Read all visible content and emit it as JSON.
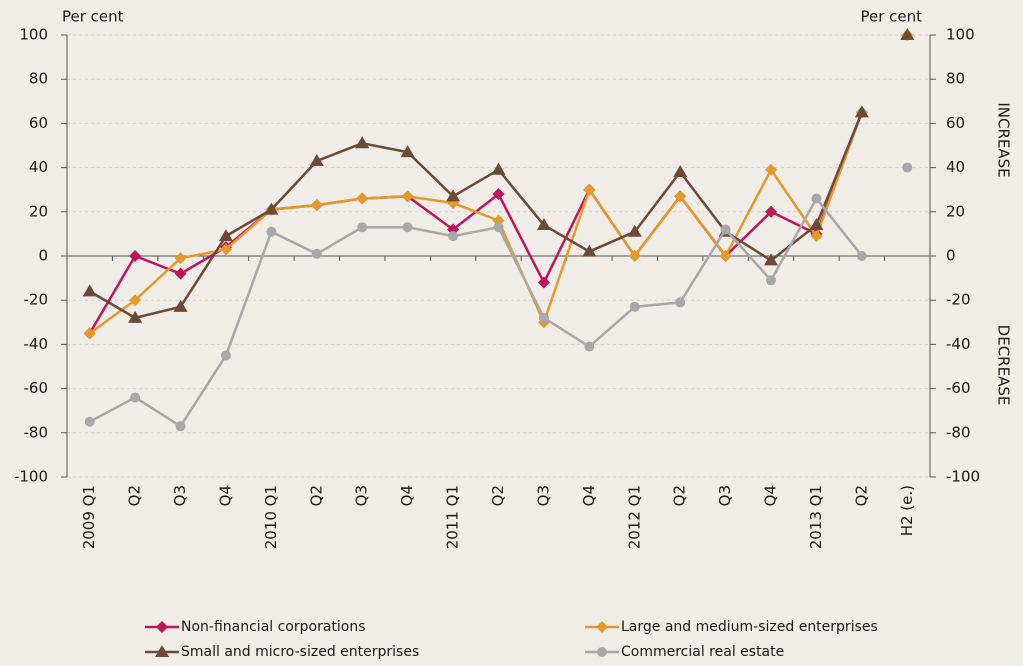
{
  "chart_data": {
    "type": "line",
    "y_label": "Per cent",
    "y2_label": "Per cent",
    "annotations": [
      "INCREASE",
      "DECREASE"
    ],
    "categories": [
      "2009 Q1",
      "Q2",
      "Q3",
      "Q4",
      "2010 Q1",
      "Q2",
      "Q3",
      "Q4",
      "2011 Q1",
      "Q2",
      "Q3",
      "Q4",
      "2012 Q1",
      "Q2",
      "Q3",
      "Q4",
      "2013 Q1",
      "Q2",
      "H2 (e.)"
    ],
    "unconnected_last_point": true,
    "series": [
      {
        "name": "Non-financial corporations",
        "color": "#c0145c",
        "marker": "diamond",
        "values": [
          -35,
          0,
          -8,
          4,
          21,
          23,
          26,
          27,
          12,
          28,
          -12,
          30,
          0,
          27,
          0,
          20,
          10,
          65,
          null
        ]
      },
      {
        "name": "Large and medium-sized enterprises",
        "color": "#e39a2a",
        "marker": "diamond",
        "values": [
          -35,
          -20,
          -1,
          3,
          21,
          23,
          26,
          27,
          24,
          16,
          -30,
          30,
          0,
          27,
          0,
          39,
          9,
          65,
          100
        ]
      },
      {
        "name": "Small and micro-sized enterprises",
        "color": "#6b4b35",
        "marker": "triangle",
        "values": [
          -16,
          -28,
          -23,
          9,
          21,
          43,
          51,
          47,
          27,
          39,
          14,
          2,
          11,
          38,
          11,
          -2,
          14,
          65,
          100
        ]
      },
      {
        "name": "Commercial real estate",
        "color": "#a8a8a8",
        "marker": "circle",
        "values": [
          -75,
          -64,
          -77,
          -45,
          11,
          1,
          13,
          13,
          9,
          13,
          -28,
          -41,
          -23,
          -21,
          12,
          -11,
          26,
          0,
          40
        ]
      }
    ],
    "ylim": [
      -100,
      100
    ],
    "yticks": [
      -100,
      -80,
      -60,
      -40,
      -20,
      0,
      20,
      40,
      60,
      80,
      100
    ],
    "y2lim": [
      -100,
      100
    ],
    "y2ticks": [
      -100,
      -80,
      -60,
      -40,
      -20,
      0,
      20,
      40,
      60,
      80,
      100
    ],
    "grid": true
  }
}
